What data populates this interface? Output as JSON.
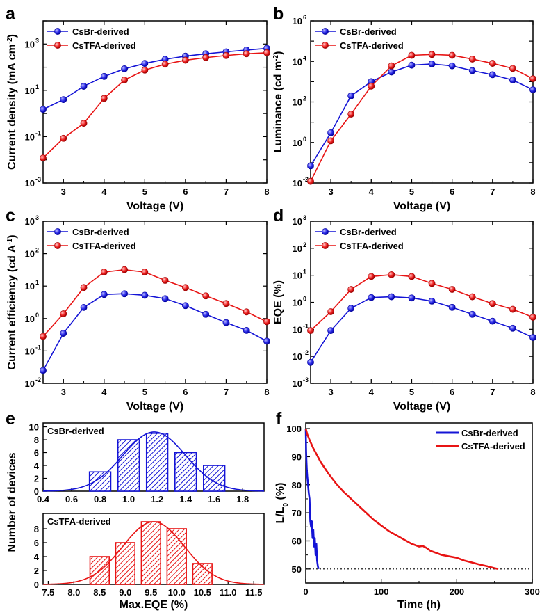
{
  "panel_letters": {
    "a": "a",
    "b": "b",
    "c": "c",
    "d": "d",
    "e": "e",
    "f": "f"
  },
  "colors": {
    "csbr": "#1414d6",
    "cstfa": "#e81414",
    "marker_edge_blue": "#0000a0",
    "marker_edge_red": "#a00000",
    "histo_fill_blue": "#c8c8ff",
    "histo_fill_red": "#ffd0d0"
  },
  "chart_data": [
    {
      "id": "a",
      "type": "line",
      "yscale": "log",
      "xlabel": "Voltage (V)",
      "ylabel": {
        "main": "Current density (mA cm",
        "sup": "-2",
        "end": ")"
      },
      "xlim": [
        2.5,
        8
      ],
      "xticks": [
        3,
        4,
        5,
        6,
        7,
        8
      ],
      "ylim": [
        0.001,
        10000
      ],
      "yticks": [
        0.001,
        0.1,
        10,
        1000
      ],
      "legend": [
        "CsBr-derived",
        "CsTFA-derived"
      ],
      "x": [
        2.5,
        3,
        3.5,
        4,
        4.5,
        5,
        5.5,
        6,
        6.5,
        7,
        7.5,
        8
      ],
      "series": [
        {
          "name": "CsBr-derived",
          "values": [
            1.5,
            4,
            15,
            40,
            85,
            145,
            220,
            300,
            380,
            460,
            550,
            650
          ]
        },
        {
          "name": "CsTFA-derived",
          "values": [
            0.012,
            0.085,
            0.38,
            4.5,
            28,
            75,
            135,
            200,
            260,
            320,
            380,
            420
          ]
        }
      ]
    },
    {
      "id": "b",
      "type": "line",
      "yscale": "log",
      "xlabel": "Voltage (V)",
      "ylabel": {
        "main": "Luminance (cd m",
        "sup": "-2",
        "end": ")"
      },
      "xlim": [
        2.5,
        8
      ],
      "xticks": [
        3,
        4,
        5,
        6,
        7,
        8
      ],
      "ylim": [
        0.01,
        1000000
      ],
      "yticks": [
        0.01,
        1,
        100,
        10000,
        1000000
      ],
      "legend": [
        "CsBr-derived",
        "CsTFA-derived"
      ],
      "x": [
        2.5,
        3,
        3.5,
        4,
        4.5,
        5,
        5.5,
        6,
        6.5,
        7,
        7.5,
        8
      ],
      "series": [
        {
          "name": "CsBr-derived",
          "values": [
            0.07,
            3,
            200,
            1000,
            3000,
            6500,
            7500,
            6000,
            3500,
            2200,
            1200,
            400
          ]
        },
        {
          "name": "CsTFA-derived",
          "values": [
            0.012,
            1.2,
            25,
            600,
            6000,
            20000,
            22000,
            20000,
            13000,
            8000,
            4500,
            1400
          ]
        }
      ]
    },
    {
      "id": "c",
      "type": "line",
      "yscale": "log",
      "xlabel": "Voltage (V)",
      "ylabel": {
        "main": "Current efficiency (cd A",
        "sup": "-1",
        "end": ")"
      },
      "xlim": [
        2.5,
        8
      ],
      "xticks": [
        3,
        4,
        5,
        6,
        7,
        8
      ],
      "ylim": [
        0.01,
        1000
      ],
      "yticks": [
        0.01,
        0.1,
        1,
        10,
        100,
        1000
      ],
      "legend": [
        "CsBr-derived",
        "CsTFA-derived"
      ],
      "x": [
        2.5,
        3,
        3.5,
        4,
        4.5,
        5,
        5.5,
        6,
        6.5,
        7,
        7.5,
        8
      ],
      "series": [
        {
          "name": "CsBr-derived",
          "values": [
            0.025,
            0.35,
            2.2,
            5.5,
            5.8,
            5.2,
            4.1,
            2.5,
            1.35,
            0.75,
            0.43,
            0.2
          ]
        },
        {
          "name": "CsTFA-derived",
          "values": [
            0.28,
            1.4,
            9,
            27,
            32,
            27,
            15,
            9,
            5,
            2.9,
            1.6,
            0.8
          ]
        }
      ]
    },
    {
      "id": "d",
      "type": "line",
      "yscale": "log",
      "xlabel": "Voltage (V)",
      "ylabel": {
        "main": "EQE (%)",
        "sup": "",
        "end": ""
      },
      "xlim": [
        2.5,
        8
      ],
      "xticks": [
        3,
        4,
        5,
        6,
        7,
        8
      ],
      "ylim": [
        0.001,
        1000
      ],
      "yticks": [
        0.001,
        0.01,
        0.1,
        1,
        10,
        100,
        1000
      ],
      "legend": [
        "CsBr-derived",
        "CsTFA-derived"
      ],
      "x": [
        2.5,
        3,
        3.5,
        4,
        4.5,
        5,
        5.5,
        6,
        6.5,
        7,
        7.5,
        8
      ],
      "series": [
        {
          "name": "CsBr-derived",
          "values": [
            0.006,
            0.09,
            0.6,
            1.5,
            1.6,
            1.45,
            1.1,
            0.65,
            0.36,
            0.2,
            0.11,
            0.05
          ]
        },
        {
          "name": "CsTFA-derived",
          "values": [
            0.09,
            0.45,
            3,
            9,
            10.5,
            9,
            5,
            3,
            1.6,
            0.9,
            0.55,
            0.28
          ]
        }
      ]
    },
    {
      "id": "e_top",
      "type": "bar",
      "title": "CsBr-derived",
      "xlim": [
        0.4,
        1.95
      ],
      "xticks": [
        0.4,
        0.6,
        0.8,
        1.0,
        1.2,
        1.4,
        1.6,
        1.8
      ],
      "ylim": [
        0,
        10.6
      ],
      "yticks": [
        0,
        2,
        4,
        6,
        8,
        10
      ],
      "bin_width": 0.2,
      "categories": [
        0.8,
        1.0,
        1.2,
        1.4,
        1.6
      ],
      "values": [
        3,
        8,
        9,
        6,
        4
      ],
      "fit": {
        "type": "gaussian",
        "mean": 1.18,
        "sd": 0.22,
        "amplitude": 9.2
      }
    },
    {
      "id": "e_bottom",
      "type": "bar",
      "title": "CsTFA-derived",
      "xlabel": "Max.EQE (%)",
      "ylabel": "Number of devices",
      "xlim": [
        7.4,
        11.7
      ],
      "xticks": [
        7.5,
        8.0,
        8.5,
        9.0,
        9.5,
        10.0,
        10.5,
        11.0,
        11.5
      ],
      "ylim": [
        0,
        10.2
      ],
      "yticks": [
        0,
        2,
        4,
        6,
        8
      ],
      "bin_width": 0.5,
      "categories": [
        8.5,
        9.0,
        9.5,
        10.0,
        10.5
      ],
      "values": [
        4,
        6,
        9,
        8,
        3
      ],
      "fit": {
        "type": "gaussian",
        "mean": 9.55,
        "sd": 0.6,
        "amplitude": 9.0
      }
    },
    {
      "id": "f",
      "type": "line",
      "yscale": "linear",
      "xlabel": "Time (h)",
      "ylabel": {
        "main": "L/L",
        "sub": "0",
        "end": " (%)"
      },
      "xlim": [
        0,
        300
      ],
      "xticks": [
        0,
        100,
        200,
        300
      ],
      "ylim": [
        45,
        102
      ],
      "yticks": [
        50,
        60,
        70,
        80,
        90,
        100
      ],
      "legend": [
        "CsBr-derived",
        "CsTFA-derived"
      ],
      "reference_line": 50,
      "series": [
        {
          "name": "CsBr-derived",
          "x": [
            0,
            0.5,
            1,
            1.5,
            2,
            3,
            4,
            5,
            6,
            7,
            8,
            9,
            10,
            11,
            12,
            13,
            14,
            15,
            16,
            17
          ],
          "values": [
            100,
            92,
            88,
            85,
            83,
            80,
            77,
            75,
            67,
            65,
            67,
            61,
            64,
            58,
            61,
            55,
            59,
            53,
            51,
            50
          ]
        },
        {
          "name": "CsTFA-derived",
          "x": [
            0,
            2,
            5,
            10,
            15,
            20,
            30,
            40,
            50,
            60,
            70,
            80,
            90,
            100,
            110,
            120,
            130,
            140,
            150,
            155,
            160,
            165,
            170,
            180,
            190,
            200,
            210,
            220,
            230,
            240,
            250,
            255
          ],
          "values": [
            100,
            98,
            96,
            93,
            90.5,
            88,
            84,
            80.5,
            77.5,
            75,
            72.5,
            70,
            67.5,
            65.5,
            63.5,
            62,
            60.5,
            59,
            58,
            58.2,
            57.5,
            56.5,
            56,
            55,
            54.5,
            54,
            53,
            52.3,
            51.6,
            51,
            50.3,
            50
          ]
        }
      ]
    }
  ]
}
